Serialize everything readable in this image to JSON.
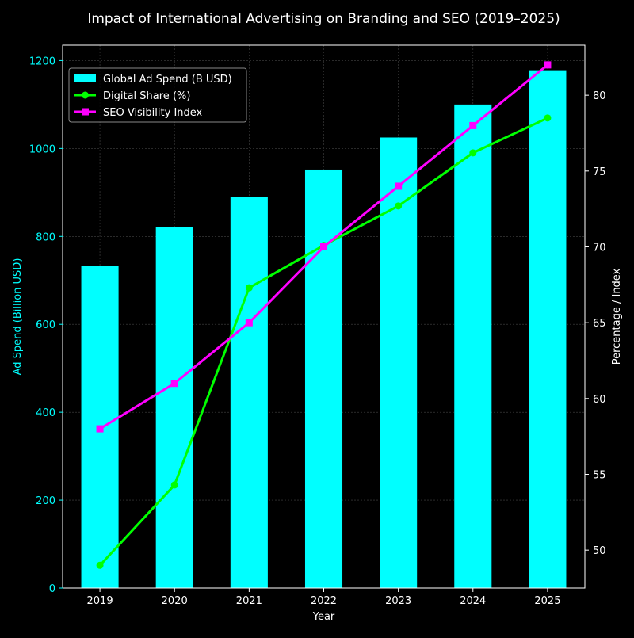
{
  "chart_data": {
    "type": "bar+line",
    "title": "Impact of International Advertising on Branding and SEO (2019–2025)",
    "xlabel": "Year",
    "ylabel_left": "Ad Spend (Billion USD)",
    "ylabel_right": "Percentage / Index",
    "categories": [
      "2019",
      "2020",
      "2021",
      "2022",
      "2023",
      "2024",
      "2025"
    ],
    "left_axis": {
      "ylim": [
        0,
        1235
      ],
      "ticks": [
        0,
        200,
        400,
        600,
        800,
        1000,
        1200
      ]
    },
    "right_axis": {
      "ylim": [
        47.5,
        83.3
      ],
      "ticks": [
        50,
        55,
        60,
        65,
        70,
        75,
        80
      ]
    },
    "grid": true,
    "legend_position": "top-left",
    "series": [
      {
        "name": "Global Ad Spend (B USD)",
        "kind": "bar",
        "axis": "left",
        "color": "#00ffff",
        "values": [
          732,
          822,
          890,
          952,
          1025,
          1100,
          1178
        ]
      },
      {
        "name": "Digital Share (%)",
        "kind": "line",
        "axis": "right",
        "color": "#00ff00",
        "marker": "circle",
        "values": [
          49.0,
          54.3,
          67.3,
          70.1,
          72.7,
          76.2,
          78.5
        ]
      },
      {
        "name": "SEO Visibility Index",
        "kind": "line",
        "axis": "right",
        "color": "#ff00ff",
        "marker": "square",
        "values": [
          58.0,
          61.0,
          65.0,
          70.0,
          74.0,
          78.0,
          82.0
        ]
      }
    ],
    "colors": {
      "background": "#000000",
      "left_axis": "#00ffff",
      "text": "#ffffff",
      "grid": "#444444"
    }
  }
}
